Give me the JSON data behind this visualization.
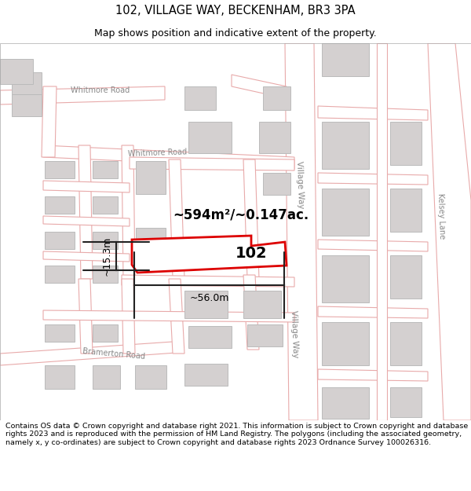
{
  "title": "102, VILLAGE WAY, BECKENHAM, BR3 3PA",
  "subtitle": "Map shows position and indicative extent of the property.",
  "footer": "Contains OS data © Crown copyright and database right 2021. This information is subject to Crown copyright and database rights 2023 and is reproduced with the permission of HM Land Registry. The polygons (including the associated geometry, namely x, y co-ordinates) are subject to Crown copyright and database rights 2023 Ordnance Survey 100026316.",
  "map_bg": "#f0eeee",
  "road_fill": "#ffffff",
  "road_color": "#e8aaaa",
  "building_fill": "#d4d0d0",
  "building_edge": "#bbbbbb",
  "highlight_fill": "#ffffff",
  "highlight_edge": "#dd0000",
  "dim_color": "#222222",
  "area_text": "~594m²/~0.147ac.",
  "width_text": "~56.0m",
  "height_text": "~15.3m",
  "number_text": "102",
  "label_color": "#888888",
  "title_fontsize": 10.5,
  "subtitle_fontsize": 9,
  "footer_fontsize": 6.8
}
